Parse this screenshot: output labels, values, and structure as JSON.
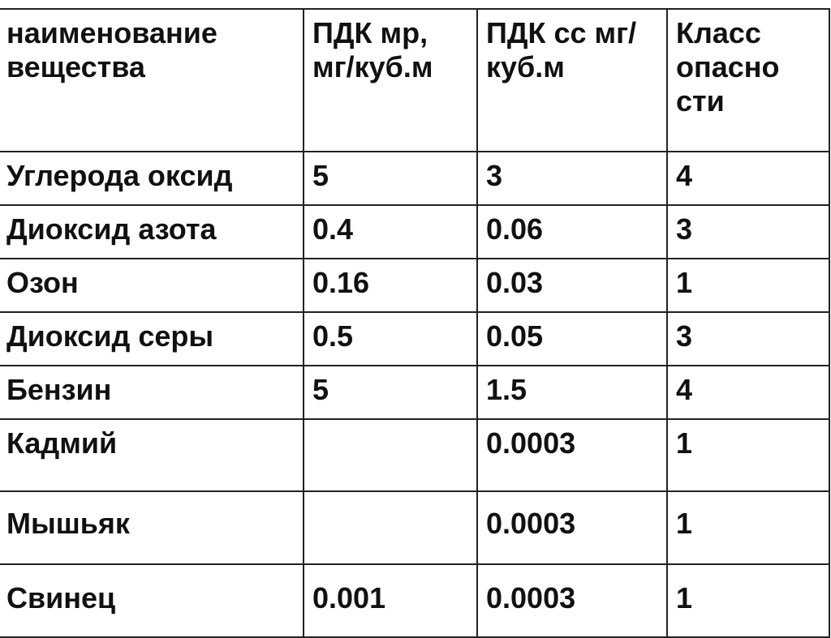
{
  "table": {
    "headers": [
      "наименование вещества",
      "ПДК мр, мг/куб.м",
      "ПДК сс мг/куб.м",
      "Класс опасно сти"
    ],
    "rows": [
      [
        "Углерода оксид",
        "5",
        "3",
        "4"
      ],
      [
        "Диоксид азота",
        "0.4",
        "0.06",
        "3"
      ],
      [
        "Озон",
        "0.16",
        "0.03",
        "1"
      ],
      [
        "Диоксид серы",
        "0.5",
        "0.05",
        "3"
      ],
      [
        "Бензин",
        "5",
        "1.5",
        "4"
      ],
      [
        "Кадмий",
        "",
        "0.0003",
        "1"
      ],
      [
        "Мышьяк",
        "",
        "0.0003",
        "1"
      ],
      [
        "Свинец",
        "0.001",
        "0.0003",
        "1"
      ]
    ]
  }
}
